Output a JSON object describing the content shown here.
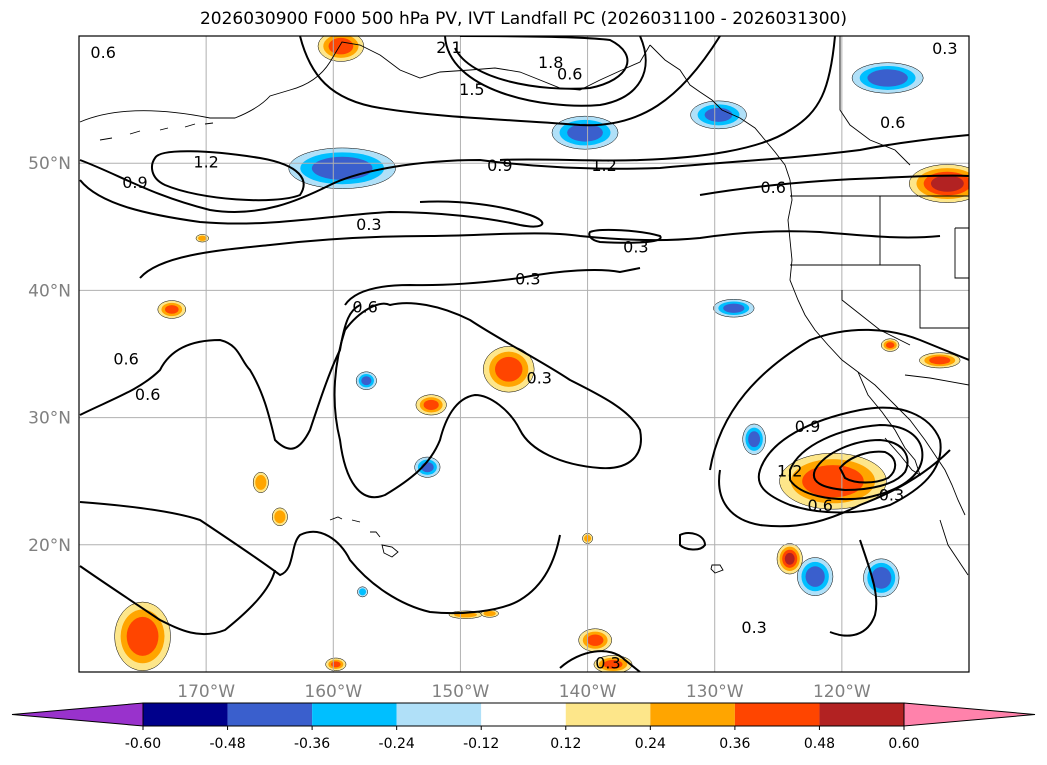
{
  "figure": {
    "title": "2026030900 F000 500 hPa PV, IVT Landfall PC (2026031100 - 2026031300)"
  },
  "map": {
    "lon_range": [
      -180,
      -110
    ],
    "lat_range": [
      10,
      60
    ],
    "lon_ticks": [
      {
        "value": -170,
        "label": "170°W"
      },
      {
        "value": -160,
        "label": "160°W"
      },
      {
        "value": -150,
        "label": "150°W"
      },
      {
        "value": -140,
        "label": "140°W"
      },
      {
        "value": -130,
        "label": "130°W"
      },
      {
        "value": -120,
        "label": "120°W"
      }
    ],
    "lat_ticks": [
      {
        "value": 20,
        "label": "20°N"
      },
      {
        "value": 30,
        "label": "30°N"
      },
      {
        "value": 40,
        "label": "40°N"
      },
      {
        "value": 50,
        "label": "50°N"
      }
    ],
    "gridlines": true,
    "contour_labels": [
      {
        "text": "2.1",
        "lon": -150.9,
        "lat": 59.1
      },
      {
        "text": "1.8",
        "lon": -142.9,
        "lat": 57.9
      },
      {
        "text": "1.5",
        "lon": -149.1,
        "lat": 55.8
      },
      {
        "text": "1.2",
        "lon": -170.0,
        "lat": 50.1
      },
      {
        "text": "0.9",
        "lon": -146.9,
        "lat": 49.8
      },
      {
        "text": "1.2",
        "lon": -138.7,
        "lat": 49.8
      },
      {
        "text": "0.9",
        "lon": -175.6,
        "lat": 48.5
      },
      {
        "text": "0.6",
        "lon": -141.4,
        "lat": 57.0
      },
      {
        "text": "0.6",
        "lon": -116.0,
        "lat": 53.2
      },
      {
        "text": "0.6",
        "lon": -125.4,
        "lat": 48.1
      },
      {
        "text": "0.3",
        "lon": -157.2,
        "lat": 45.2
      },
      {
        "text": "0.3",
        "lon": -136.2,
        "lat": 43.4
      },
      {
        "text": "0.3",
        "lon": -144.7,
        "lat": 40.9
      },
      {
        "text": "0.6",
        "lon": -157.5,
        "lat": 38.7
      },
      {
        "text": "0.6",
        "lon": -176.3,
        "lat": 34.6
      },
      {
        "text": "0.6",
        "lon": -174.6,
        "lat": 31.8
      },
      {
        "text": "0.3",
        "lon": -143.8,
        "lat": 33.1
      },
      {
        "text": "0.9",
        "lon": -122.7,
        "lat": 29.3
      },
      {
        "text": "1.2",
        "lon": -124.1,
        "lat": 25.8
      },
      {
        "text": "0.6",
        "lon": -121.7,
        "lat": 23.1
      },
      {
        "text": "0.3",
        "lon": -116.1,
        "lat": 23.9
      },
      {
        "text": "0.3",
        "lon": -126.9,
        "lat": 13.5
      },
      {
        "text": "0.3",
        "lon": -138.4,
        "lat": 10.7
      },
      {
        "text": "0.6",
        "lon": -178.1,
        "lat": 58.7
      },
      {
        "text": "0.3",
        "lon": -111.9,
        "lat": 59.0
      }
    ],
    "pc_field": [
      {
        "lon": -159.3,
        "lat": 49.6,
        "rx": 4.2,
        "ry": 1.6,
        "value": -0.45
      },
      {
        "lon": -140.2,
        "lat": 52.4,
        "rx": 2.6,
        "ry": 1.3,
        "value": -0.42
      },
      {
        "lon": -129.7,
        "lat": 53.8,
        "rx": 2.2,
        "ry": 1.1,
        "value": -0.38
      },
      {
        "lon": -116.4,
        "lat": 56.7,
        "rx": 2.8,
        "ry": 1.2,
        "value": -0.45
      },
      {
        "lon": -128.5,
        "lat": 38.6,
        "rx": 1.6,
        "ry": 0.7,
        "value": -0.4
      },
      {
        "lon": -157.4,
        "lat": 32.9,
        "rx": 0.8,
        "ry": 0.7,
        "value": -0.38
      },
      {
        "lon": -152.6,
        "lat": 26.1,
        "rx": 1.0,
        "ry": 0.8,
        "value": -0.38
      },
      {
        "lon": -126.9,
        "lat": 28.3,
        "rx": 0.9,
        "ry": 1.2,
        "value": -0.4
      },
      {
        "lon": -122.1,
        "lat": 17.5,
        "rx": 1.4,
        "ry": 1.5,
        "value": -0.42
      },
      {
        "lon": -116.9,
        "lat": 17.4,
        "rx": 1.4,
        "ry": 1.5,
        "value": -0.45
      },
      {
        "lon": -157.7,
        "lat": 16.3,
        "rx": 0.4,
        "ry": 0.4,
        "value": -0.3
      },
      {
        "lon": -159.4,
        "lat": 59.2,
        "rx": 1.8,
        "ry": 1.2,
        "value": 0.42
      },
      {
        "lon": -111.7,
        "lat": 48.4,
        "rx": 3.0,
        "ry": 1.5,
        "value": 0.52
      },
      {
        "lon": -112.3,
        "lat": 34.5,
        "rx": 1.6,
        "ry": 0.6,
        "value": 0.4
      },
      {
        "lon": -116.2,
        "lat": 35.7,
        "rx": 0.7,
        "ry": 0.5,
        "value": 0.36
      },
      {
        "lon": -146.2,
        "lat": 33.8,
        "rx": 2.0,
        "ry": 1.8,
        "value": 0.42
      },
      {
        "lon": -152.3,
        "lat": 31.0,
        "rx": 1.2,
        "ry": 0.8,
        "value": 0.38
      },
      {
        "lon": -172.7,
        "lat": 38.5,
        "rx": 1.1,
        "ry": 0.7,
        "value": 0.37
      },
      {
        "lon": -165.7,
        "lat": 24.9,
        "rx": 0.6,
        "ry": 0.8,
        "value": 0.35
      },
      {
        "lon": -164.2,
        "lat": 22.2,
        "rx": 0.6,
        "ry": 0.7,
        "value": 0.35
      },
      {
        "lon": -175.0,
        "lat": 12.8,
        "rx": 2.2,
        "ry": 2.7,
        "value": 0.45
      },
      {
        "lon": -120.7,
        "lat": 25.0,
        "rx": 4.2,
        "ry": 2.2,
        "value": 0.46
      },
      {
        "lon": -124.1,
        "lat": 18.9,
        "rx": 1.0,
        "ry": 1.2,
        "value": 0.48
      },
      {
        "lon": -139.4,
        "lat": 12.5,
        "rx": 1.3,
        "ry": 0.9,
        "value": 0.38
      },
      {
        "lon": -138.0,
        "lat": 10.6,
        "rx": 1.5,
        "ry": 0.7,
        "value": 0.38
      },
      {
        "lon": -149.6,
        "lat": 14.5,
        "rx": 1.3,
        "ry": 0.3,
        "value": 0.3
      },
      {
        "lon": -147.7,
        "lat": 14.6,
        "rx": 0.7,
        "ry": 0.3,
        "value": 0.3
      },
      {
        "lon": -159.8,
        "lat": 10.6,
        "rx": 0.8,
        "ry": 0.5,
        "value": 0.36
      },
      {
        "lon": -140.0,
        "lat": 20.5,
        "rx": 0.4,
        "ry": 0.4,
        "value": 0.3
      },
      {
        "lon": -170.3,
        "lat": 44.1,
        "rx": 0.5,
        "ry": 0.3,
        "value": 0.28
      }
    ]
  },
  "colorbar": {
    "colors": [
      "#9932cc",
      "#00008b",
      "#3a5fcd",
      "#00bfff",
      "#b0e0f8",
      "#ffffff",
      "#fde68a",
      "#ffa500",
      "#ff4500",
      "#b22222",
      "#ff82ab"
    ],
    "ticks": [
      "-0.60",
      "-0.48",
      "-0.36",
      "-0.24",
      "-0.12",
      "0.12",
      "0.24",
      "0.36",
      "0.48",
      "0.60"
    ]
  }
}
